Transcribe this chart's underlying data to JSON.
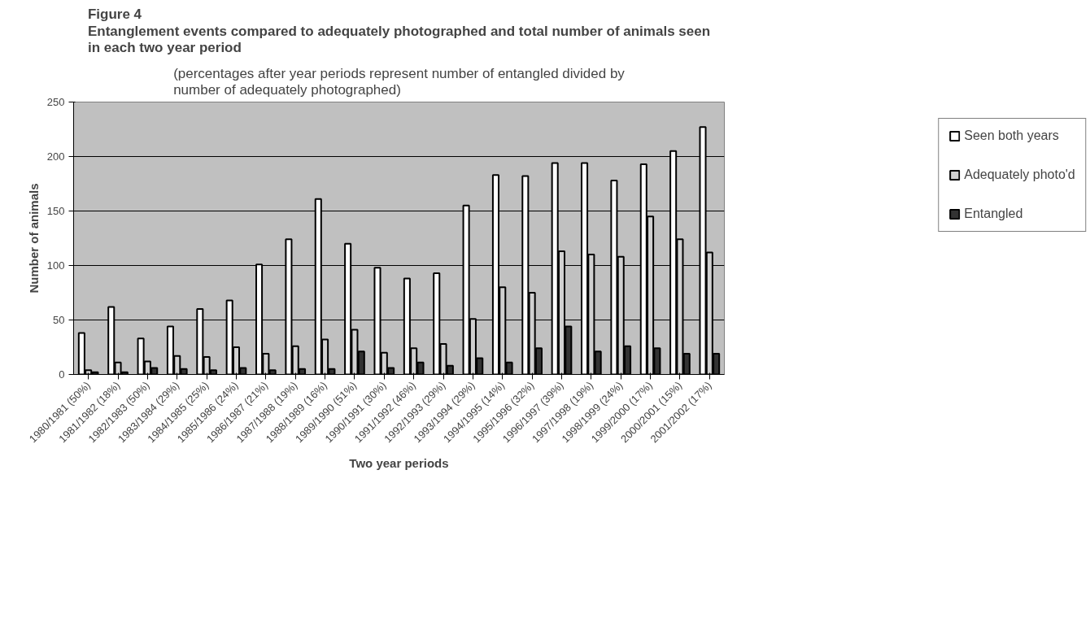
{
  "chart_data": {
    "type": "bar",
    "title": "Figure 4\nEntanglement events compared to adequately photographed and total number of animals seen\nin each two year period",
    "subtitle": "(percentages after year periods represent number of entangled divided by\nnumber of adequately photographed)",
    "xlabel": "Two year periods",
    "ylabel": "Number of animals",
    "categories": [
      "1980/1981 (50%)",
      "1981/1982 (18%)",
      "1982/1983 (50%)",
      "1983/1984 (29%)",
      "1984/1985 (25%)",
      "1985/1986 (24%)",
      "1986/1987 (21%)",
      "1987/1988 (19%)",
      "1988/1989 (16%)",
      "1989/1990 (51%)",
      "1990/1991 (30%)",
      "1991/1992 (46%)",
      "1992/1993 (29%)",
      "1993/1994 (29%)",
      "1994/1995 (14%)",
      "1995/1996 (32%)",
      "1996/1997 (39%)",
      "1997/1998 (19%)",
      "1998/1999 (24%)",
      "1999/2000 (17%)",
      "2000/2001 (15%)",
      "2001/2002 (17%)"
    ],
    "series": [
      {
        "name": "Seen both years",
        "color": "#ffffff",
        "values": [
          38,
          62,
          33,
          44,
          60,
          68,
          101,
          124,
          161,
          120,
          98,
          88,
          93,
          155,
          183,
          182,
          194,
          194,
          178,
          193,
          205,
          227
        ]
      },
      {
        "name": "Adequately photo'd",
        "color": "#d0d0d0",
        "values": [
          4,
          11,
          12,
          17,
          16,
          25,
          19,
          26,
          32,
          41,
          20,
          24,
          28,
          51,
          80,
          75,
          113,
          110,
          108,
          145,
          124,
          112
        ]
      },
      {
        "name": "Entangled",
        "color": "#333333",
        "values": [
          2,
          2,
          6,
          5,
          4,
          6,
          4,
          5,
          5,
          21,
          6,
          11,
          8,
          15,
          11,
          24,
          44,
          21,
          26,
          24,
          19,
          19
        ]
      }
    ],
    "ylim": [
      0,
      250
    ],
    "yticks": [
      0,
      50,
      100,
      150,
      200,
      250
    ],
    "grid": "y",
    "legend": "right"
  }
}
